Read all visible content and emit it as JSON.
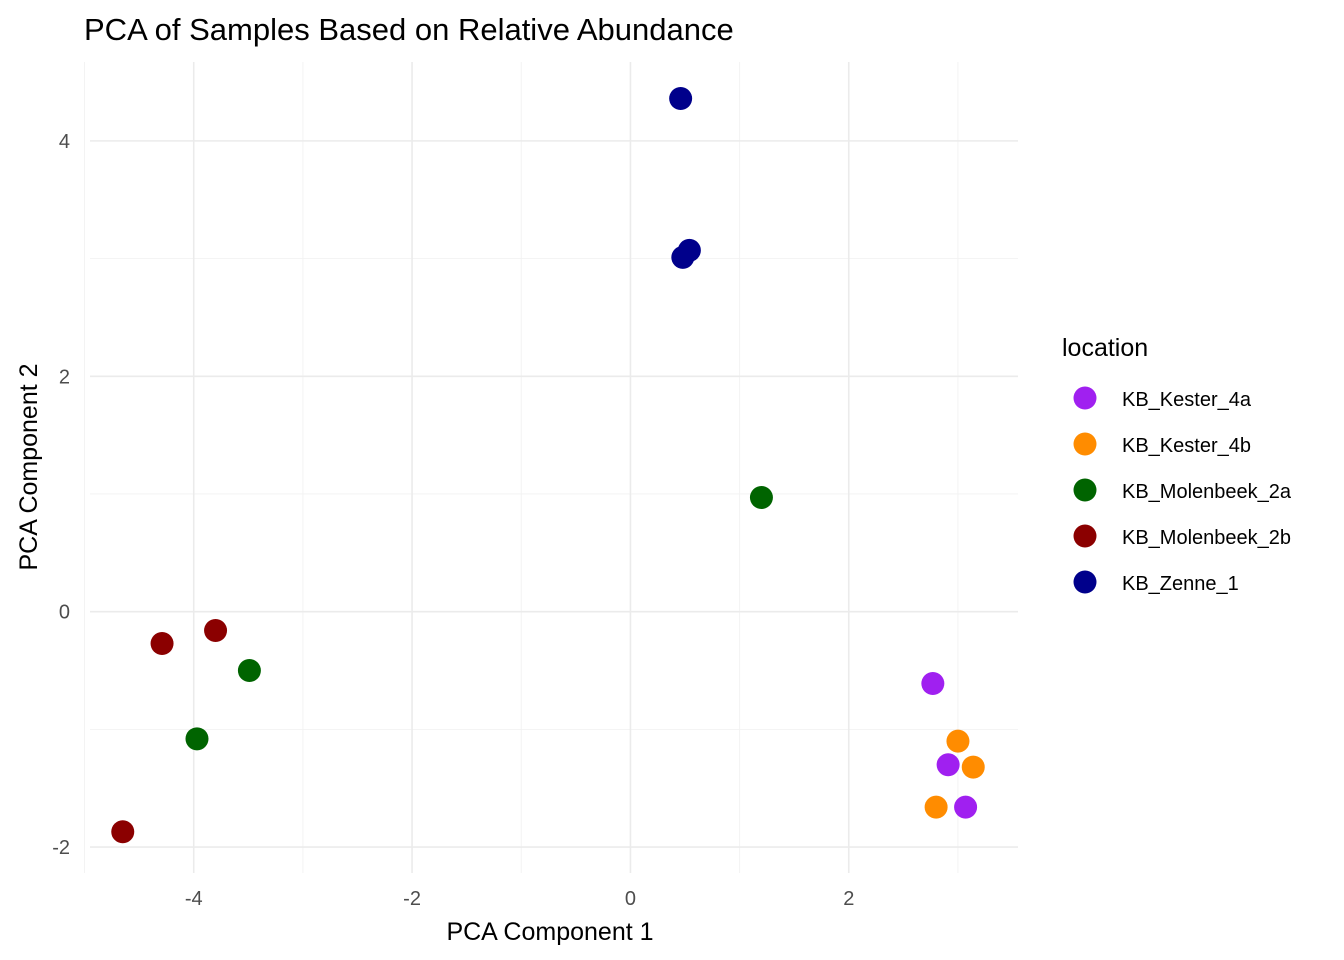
{
  "chart_data": {
    "type": "scatter",
    "title": "PCA of Samples Based on Relative Abundance",
    "xlabel": "PCA Component 1",
    "ylabel": "PCA Component 2",
    "xlim": [
      -4.95,
      3.55
    ],
    "ylim": [
      -2.22,
      4.67
    ],
    "x_ticks": [
      -4,
      -2,
      0,
      2
    ],
    "y_ticks": [
      -2,
      0,
      2,
      4
    ],
    "x_minor_ticks": [
      -5,
      -3,
      -1,
      1,
      3
    ],
    "y_minor_ticks": [
      -1,
      1,
      3
    ],
    "grid": true,
    "legend": {
      "title": "location",
      "position": "right"
    },
    "series": [
      {
        "name": "KB_Kester_4a",
        "color": "#a020f0",
        "points": [
          [
            2.77,
            -0.61
          ],
          [
            2.91,
            -1.3
          ],
          [
            3.07,
            -1.66
          ]
        ]
      },
      {
        "name": "KB_Kester_4b",
        "color": "#ff8c00",
        "points": [
          [
            3.0,
            -1.1
          ],
          [
            3.14,
            -1.32
          ],
          [
            2.8,
            -1.66
          ]
        ]
      },
      {
        "name": "KB_Molenbeek_2a",
        "color": "#006400",
        "points": [
          [
            1.2,
            0.97
          ],
          [
            -3.49,
            -0.5
          ],
          [
            -3.97,
            -1.08
          ]
        ]
      },
      {
        "name": "KB_Molenbeek_2b",
        "color": "#8b0000",
        "points": [
          [
            -3.8,
            -0.16
          ],
          [
            -4.29,
            -0.27
          ],
          [
            -4.65,
            -1.87
          ]
        ]
      },
      {
        "name": "KB_Zenne_1",
        "color": "#00008b",
        "points": [
          [
            0.46,
            4.36
          ],
          [
            0.54,
            3.07
          ],
          [
            0.48,
            3.01
          ]
        ]
      }
    ]
  }
}
